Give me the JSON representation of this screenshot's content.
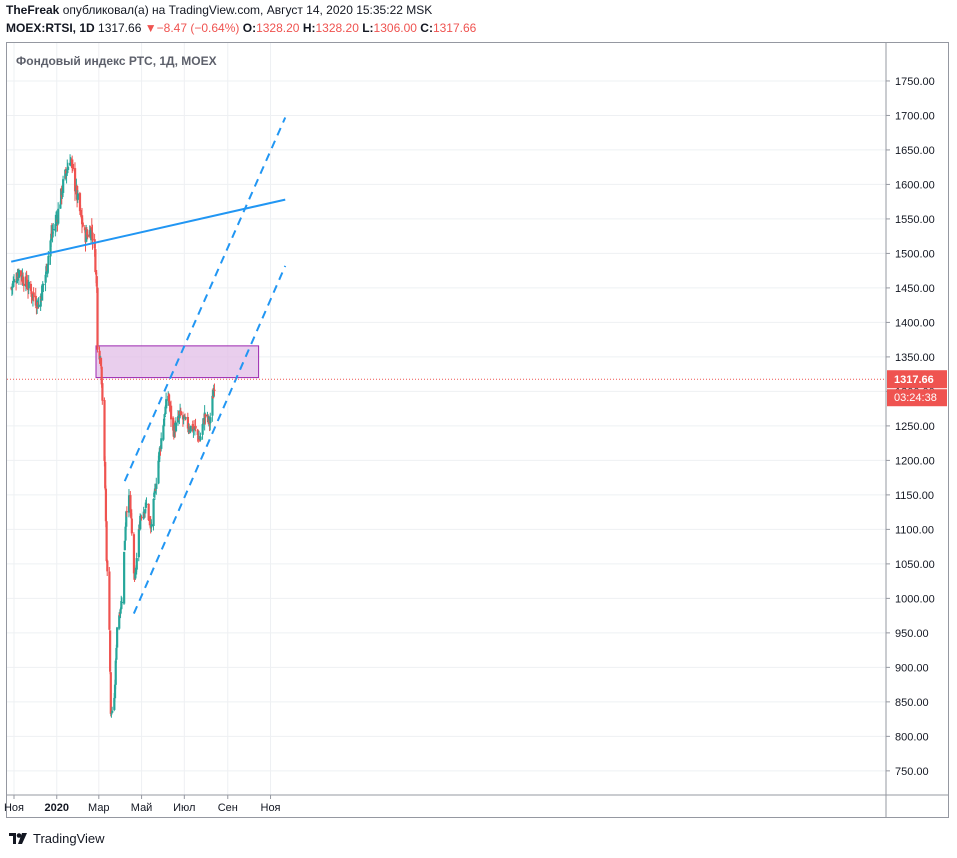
{
  "header": {
    "user": "TheFreak",
    "published_text": "опубликовал(а) на TradingView.com, Август 14, 2020 15:35:22 MSK",
    "symbol": "MOEX:RTSI, 1D",
    "last": "1317.66",
    "change_arrow": "▼",
    "change": "−8.47 (−0.64%)",
    "o_label": "O:",
    "o_value": "1328.20",
    "h_label": "H:",
    "h_value": "1328.20",
    "l_label": "L:",
    "l_value": "1306.00",
    "c_label": "C:",
    "c_value": "1317.66"
  },
  "footer": {
    "brand": "TradingView",
    "logo_icon": "tradingview-logo-icon"
  },
  "colors": {
    "up": "#26a69a",
    "down": "#ef5350",
    "trend": "#2196f3",
    "zone_fill": "#e1bee7",
    "zone_border": "#9c27b0",
    "price_line": "#ef5350"
  },
  "chart_data": {
    "type": "candlestick",
    "title": "Фондовый индекс РТС, 1Д, MOEX",
    "y_ticks": [
      750,
      800,
      850,
      900,
      950,
      1000,
      1050,
      1100,
      1150,
      1200,
      1250,
      1300,
      1350,
      1400,
      1450,
      1500,
      1550,
      1600,
      1650,
      1700,
      1750
    ],
    "y_tick_labels": [
      "750.00",
      "800.00",
      "850.00",
      "900.00",
      "950.00",
      "1000.00",
      "1050.00",
      "1100.00",
      "1150.00",
      "1200.00",
      "1250.00",
      "1300.00",
      "1350.00",
      "1400.00",
      "1450.00",
      "1500.00",
      "1550.00",
      "1600.00",
      "1650.00",
      "1700.00",
      "1750.00"
    ],
    "ylim": [
      715,
      1805
    ],
    "x_labels": [
      {
        "label": "Ноя",
        "date": "2019-11-01"
      },
      {
        "label": "2020",
        "date": "2020-01-01"
      },
      {
        "label": "Мар",
        "date": "2020-03-01"
      },
      {
        "label": "Май",
        "date": "2020-05-01"
      },
      {
        "label": "Июл",
        "date": "2020-07-01"
      },
      {
        "label": "Сен",
        "date": "2020-09-01"
      },
      {
        "label": "Ноя",
        "date": "2020-11-01"
      }
    ],
    "grid": true,
    "last_price": 1317.66,
    "last_price_label": "1317.66",
    "countdown_label": "03:24:38",
    "resistance_zone": {
      "from": "2020-02-26",
      "to": "2020-10-15",
      "low": 1320,
      "high": 1366
    },
    "lines": [
      {
        "style": "solid",
        "from": {
          "date": "2019-10-28",
          "value": 1488
        },
        "to": {
          "date": "2020-11-22",
          "value": 1578
        }
      },
      {
        "style": "dashed",
        "from": {
          "date": "2020-04-07",
          "value": 1170
        },
        "to": {
          "date": "2020-11-22",
          "value": 1697
        }
      },
      {
        "style": "dashed",
        "from": {
          "date": "2020-04-20",
          "value": 978
        },
        "to": {
          "date": "2020-11-22",
          "value": 1482
        }
      }
    ],
    "anchors": [
      {
        "date": "2019-10-28",
        "value": 1450
      },
      {
        "date": "2019-11-08",
        "value": 1475
      },
      {
        "date": "2019-11-22",
        "value": 1450
      },
      {
        "date": "2019-12-06",
        "value": 1425
      },
      {
        "date": "2019-12-16",
        "value": 1470
      },
      {
        "date": "2019-12-24",
        "value": 1525
      },
      {
        "date": "2020-01-01",
        "value": 1550
      },
      {
        "date": "2020-01-10",
        "value": 1600
      },
      {
        "date": "2020-01-20",
        "value": 1640
      },
      {
        "date": "2020-01-24",
        "value": 1615
      },
      {
        "date": "2020-02-03",
        "value": 1560
      },
      {
        "date": "2020-02-10",
        "value": 1525
      },
      {
        "date": "2020-02-20",
        "value": 1535
      },
      {
        "date": "2020-02-24",
        "value": 1500
      },
      {
        "date": "2020-02-27",
        "value": 1450
      },
      {
        "date": "2020-02-28",
        "value": 1370
      },
      {
        "date": "2020-03-04",
        "value": 1345
      },
      {
        "date": "2020-03-06",
        "value": 1290
      },
      {
        "date": "2020-03-10",
        "value": 1160
      },
      {
        "date": "2020-03-12",
        "value": 1060
      },
      {
        "date": "2020-03-16",
        "value": 960
      },
      {
        "date": "2020-03-18",
        "value": 830
      },
      {
        "date": "2020-03-23",
        "value": 850
      },
      {
        "date": "2020-03-27",
        "value": 960
      },
      {
        "date": "2020-04-03",
        "value": 1000
      },
      {
        "date": "2020-04-09",
        "value": 1130
      },
      {
        "date": "2020-04-14",
        "value": 1145
      },
      {
        "date": "2020-04-21",
        "value": 1020
      },
      {
        "date": "2020-04-29",
        "value": 1120
      },
      {
        "date": "2020-05-08",
        "value": 1135
      },
      {
        "date": "2020-05-14",
        "value": 1100
      },
      {
        "date": "2020-05-25",
        "value": 1200
      },
      {
        "date": "2020-06-03",
        "value": 1270
      },
      {
        "date": "2020-06-08",
        "value": 1295
      },
      {
        "date": "2020-06-15",
        "value": 1240
      },
      {
        "date": "2020-06-25",
        "value": 1265
      },
      {
        "date": "2020-07-06",
        "value": 1250
      },
      {
        "date": "2020-07-16",
        "value": 1245
      },
      {
        "date": "2020-07-23",
        "value": 1230
      },
      {
        "date": "2020-07-30",
        "value": 1265
      },
      {
        "date": "2020-08-06",
        "value": 1255
      },
      {
        "date": "2020-08-11",
        "value": 1295
      },
      {
        "date": "2020-08-14",
        "value": 1318
      }
    ]
  }
}
